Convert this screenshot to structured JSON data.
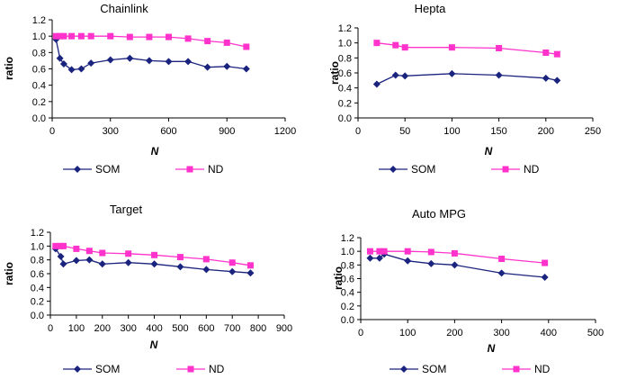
{
  "colors": {
    "som": "#1a237e",
    "nd": "#ff33cc",
    "axis": "#000000"
  },
  "chart_data": [
    {
      "type": "line",
      "title": "Chainlink",
      "xlabel": "N",
      "ylabel": "ratio",
      "xlim": [
        0,
        1200
      ],
      "ylim": [
        0,
        1.2
      ],
      "x_ticks": [
        "0",
        "300",
        "600",
        "900",
        "1200"
      ],
      "y_ticks": [
        "0.0",
        "0.2",
        "0.4",
        "0.6",
        "0.8",
        "1.0",
        "1.2"
      ],
      "legend": "bottom",
      "series": [
        {
          "name": "SOM",
          "marker": "diamond",
          "color": "#1a237e",
          "x": [
            20,
            40,
            60,
            100,
            150,
            200,
            300,
            400,
            500,
            600,
            700,
            800,
            900,
            1000
          ],
          "y": [
            0.96,
            0.73,
            0.66,
            0.59,
            0.6,
            0.67,
            0.71,
            0.73,
            0.7,
            0.69,
            0.69,
            0.62,
            0.63,
            0.6
          ]
        },
        {
          "name": "ND",
          "marker": "square",
          "color": "#ff33cc",
          "x": [
            20,
            40,
            60,
            100,
            150,
            200,
            300,
            400,
            500,
            600,
            700,
            800,
            900,
            1000
          ],
          "y": [
            1.0,
            1.0,
            1.0,
            1.0,
            1.0,
            1.0,
            1.0,
            0.99,
            0.99,
            0.99,
            0.97,
            0.94,
            0.92,
            0.87
          ]
        }
      ]
    },
    {
      "type": "line",
      "title": "Hepta",
      "xlabel": "N",
      "ylabel": "ratio",
      "xlim": [
        0,
        250
      ],
      "ylim": [
        0,
        1.2
      ],
      "x_ticks": [
        "0",
        "50",
        "100",
        "150",
        "200",
        "250"
      ],
      "y_ticks": [
        "0.0",
        "0.2",
        "0.4",
        "0.6",
        "0.8",
        "1.0",
        "1.2"
      ],
      "legend": "bottom",
      "series": [
        {
          "name": "SOM",
          "marker": "diamond",
          "color": "#1a237e",
          "x": [
            20,
            40,
            50,
            100,
            150,
            200,
            212
          ],
          "y": [
            0.45,
            0.57,
            0.56,
            0.59,
            0.57,
            0.53,
            0.5
          ]
        },
        {
          "name": "ND",
          "marker": "square",
          "color": "#ff33cc",
          "x": [
            20,
            40,
            50,
            100,
            150,
            200,
            212
          ],
          "y": [
            1.0,
            0.97,
            0.94,
            0.94,
            0.93,
            0.87,
            0.85
          ]
        }
      ]
    },
    {
      "type": "line",
      "title": "Target",
      "xlabel": "N",
      "ylabel": "ratio",
      "xlim": [
        0,
        900
      ],
      "ylim": [
        0,
        1.2
      ],
      "x_ticks": [
        "0",
        "100",
        "200",
        "300",
        "400",
        "500",
        "600",
        "700",
        "800",
        "900"
      ],
      "y_ticks": [
        "0.0",
        "0.2",
        "0.4",
        "0.6",
        "0.8",
        "1.0",
        "1.2"
      ],
      "legend": "bottom",
      "series": [
        {
          "name": "SOM",
          "marker": "diamond",
          "color": "#1a237e",
          "x": [
            20,
            40,
            50,
            100,
            150,
            200,
            300,
            400,
            500,
            600,
            700,
            770
          ],
          "y": [
            0.96,
            0.85,
            0.74,
            0.79,
            0.8,
            0.74,
            0.76,
            0.74,
            0.7,
            0.66,
            0.63,
            0.61
          ]
        },
        {
          "name": "ND",
          "marker": "square",
          "color": "#ff33cc",
          "x": [
            20,
            40,
            50,
            100,
            150,
            200,
            300,
            400,
            500,
            600,
            700,
            770
          ],
          "y": [
            1.0,
            1.0,
            1.0,
            0.96,
            0.93,
            0.9,
            0.89,
            0.87,
            0.84,
            0.81,
            0.76,
            0.72
          ]
        }
      ]
    },
    {
      "type": "line",
      "title": "Auto MPG",
      "xlabel": "N",
      "ylabel": "ratio",
      "xlim": [
        0,
        500
      ],
      "ylim": [
        0,
        1.2
      ],
      "x_ticks": [
        "0",
        "100",
        "200",
        "300",
        "400",
        "500"
      ],
      "y_ticks": [
        "0.0",
        "0.2",
        "0.4",
        "0.6",
        "0.8",
        "1.0",
        "1.2"
      ],
      "legend": "bottom",
      "series": [
        {
          "name": "SOM",
          "marker": "diamond",
          "color": "#1a237e",
          "x": [
            20,
            40,
            50,
            100,
            150,
            200,
            300,
            392
          ],
          "y": [
            0.9,
            0.9,
            0.96,
            0.86,
            0.82,
            0.8,
            0.68,
            0.62
          ]
        },
        {
          "name": "ND",
          "marker": "square",
          "color": "#ff33cc",
          "x": [
            20,
            40,
            50,
            100,
            150,
            200,
            300,
            392
          ],
          "y": [
            1.0,
            1.0,
            1.0,
            1.0,
            0.99,
            0.97,
            0.89,
            0.83
          ]
        }
      ]
    }
  ]
}
